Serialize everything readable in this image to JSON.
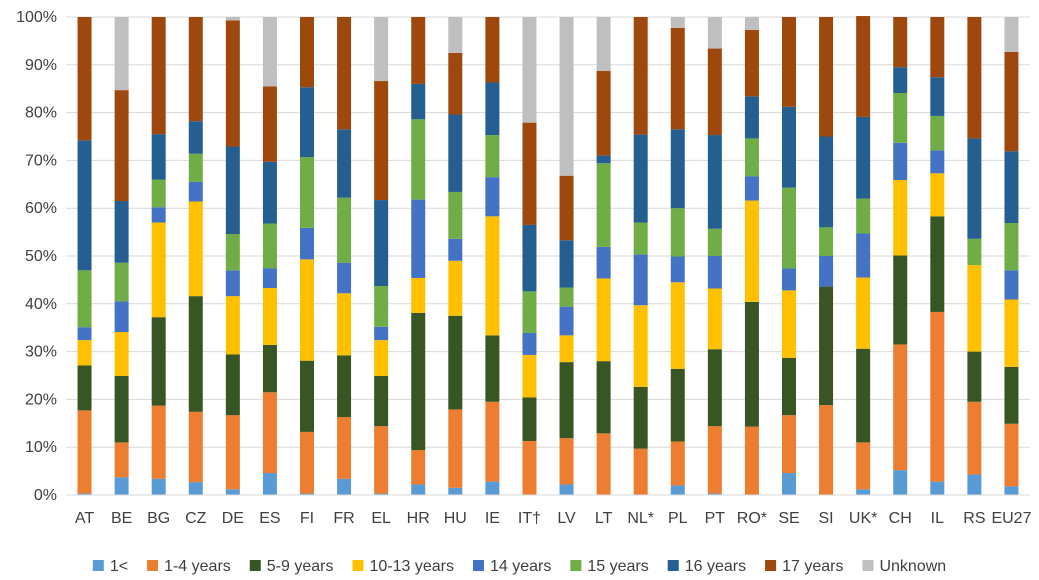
{
  "chart_data": {
    "type": "bar",
    "stacked": true,
    "title": "",
    "xlabel": "",
    "ylabel": "",
    "ylim": [
      0,
      100
    ],
    "yticks": [
      "0%",
      "10%",
      "20%",
      "30%",
      "40%",
      "50%",
      "60%",
      "70%",
      "80%",
      "90%",
      "100%"
    ],
    "grid": true,
    "legend_position": "bottom",
    "categories": [
      "AT",
      "BE",
      "BG",
      "CZ",
      "DE",
      "ES",
      "FI",
      "FR",
      "EL",
      "HR",
      "HU",
      "IE",
      "IT†",
      "LV",
      "LT",
      "NL*",
      "PL",
      "PT",
      "RO*",
      "SE",
      "SI",
      "UK*",
      "CH",
      "IL",
      "RS",
      "EU27"
    ],
    "series": [
      {
        "name": "1<",
        "color": "#5b9bd5",
        "values": [
          0.3,
          3.7,
          3.4,
          2.7,
          1.2,
          4.6,
          0.3,
          3.4,
          0.3,
          2.2,
          1.5,
          2.8,
          0,
          2.2,
          0,
          0,
          2,
          0.3,
          0,
          4.6,
          0,
          1.2,
          5.2,
          2.8,
          4.3,
          1.8
        ]
      },
      {
        "name": "1-4 years",
        "color": "#ed7d31",
        "values": [
          17.4,
          7.3,
          15.3,
          14.7,
          15.5,
          16.9,
          12.9,
          12.9,
          14.1,
          7.2,
          16.4,
          16.7,
          11.3,
          9.7,
          12.9,
          9.7,
          9.2,
          14.1,
          14.3,
          12.1,
          18.8,
          9.8,
          26.3,
          35.5,
          15.2,
          13.1
        ]
      },
      {
        "name": "5-9 years",
        "color": "#375623",
        "values": [
          9.4,
          13.9,
          18.5,
          24.2,
          12.7,
          9.9,
          14.9,
          12.9,
          10.5,
          28.7,
          19.6,
          13.9,
          9.1,
          15.9,
          15.1,
          12.9,
          15.2,
          16.1,
          26.1,
          12,
          24.8,
          19.6,
          18.6,
          20,
          10.5,
          11.9
        ]
      },
      {
        "name": "10-13 years",
        "color": "#ffc000",
        "values": [
          5.3,
          9.2,
          19.8,
          19.8,
          12.2,
          11.9,
          21.2,
          13,
          7.5,
          7.3,
          11.5,
          24.9,
          8.9,
          5.6,
          17.3,
          17.1,
          18.1,
          12.7,
          21.2,
          14.1,
          0,
          14.9,
          15.8,
          9.0,
          18.1,
          14.1
        ]
      },
      {
        "name": "14 years",
        "color": "#4472c4",
        "values": [
          2.7,
          6.4,
          3.2,
          4.1,
          5.4,
          4.1,
          6.6,
          6.4,
          2.8,
          16.4,
          4.6,
          8.2,
          4.6,
          6,
          6.6,
          10.6,
          5.4,
          6.8,
          5.1,
          4.6,
          6.4,
          9.2,
          7.8,
          4.8,
          0,
          6.1
        ]
      },
      {
        "name": "15 years",
        "color": "#70ad47",
        "values": [
          11.9,
          8.1,
          5.8,
          5.9,
          7.6,
          9.4,
          14.8,
          13.6,
          8.5,
          16.8,
          9.8,
          8.8,
          8.7,
          4,
          17.5,
          6.7,
          10.1,
          5.7,
          7.9,
          16.9,
          6,
          7.3,
          10.4,
          7.2,
          5.5,
          9.9
        ]
      },
      {
        "name": "16 years",
        "color": "#255e91",
        "values": [
          27.2,
          12.9,
          9.5,
          6.8,
          18.3,
          12.9,
          14.6,
          14.3,
          18,
          7.4,
          16.2,
          11,
          13.9,
          9.9,
          1.6,
          18.4,
          16.5,
          19.6,
          8.8,
          16.9,
          19,
          17.1,
          5.4,
          8.1,
          21,
          15
        ]
      },
      {
        "name": "17 years",
        "color": "#9e480e",
        "values": [
          25.8,
          23.2,
          24.5,
          21.8,
          26.4,
          15.8,
          14.7,
          23.5,
          24.9,
          14,
          12.9,
          13.7,
          21.4,
          13.5,
          17.7,
          24.6,
          21.2,
          18.1,
          13.9,
          18.8,
          25,
          21.1,
          10.5,
          12.6,
          25.4,
          20.8
        ]
      },
      {
        "name": "Unknown",
        "color": "#bfbfbf",
        "values": [
          0,
          15.3,
          0,
          0,
          0.7,
          14.5,
          0,
          0,
          13.4,
          0,
          7.5,
          0,
          22.1,
          33.2,
          11.3,
          0,
          2.3,
          6.6,
          2.7,
          0,
          0,
          0,
          0,
          0,
          0,
          7.3
        ]
      }
    ]
  }
}
